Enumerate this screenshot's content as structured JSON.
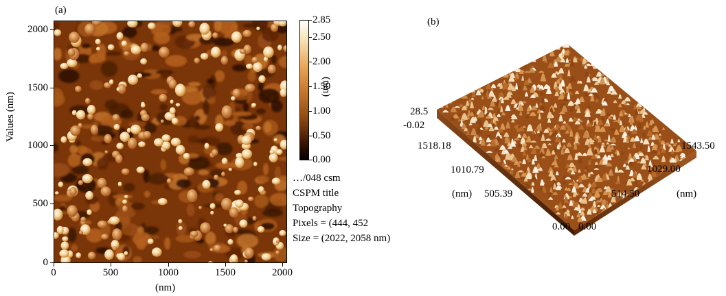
{
  "panel_a": {
    "label": "(a)",
    "y_axis_title": "Values (nm)",
    "x_axis_title": "(nm)",
    "y_ticks": [
      "2000",
      "1500",
      "1000",
      "500",
      "0"
    ],
    "x_ticks": [
      "0",
      "500",
      "1000",
      "1500",
      "2000"
    ],
    "colorbar": {
      "ticks": [
        "2.85",
        "2.50",
        "2.00",
        "1.50",
        "1.00",
        "0.50",
        "0.00"
      ],
      "unit": "(nm)"
    },
    "info": {
      "file": "…/048 csm",
      "title": "CSPM title",
      "mode": "Topography",
      "pixels": "Pixels = (444, 452",
      "size": "Size = (2022, 2058 nm)"
    },
    "colors": {
      "dark": "#3a1504",
      "mid": "#b5601c",
      "light": "#f6dfae"
    }
  },
  "panel_b": {
    "label": "(b)",
    "z_top": "28.5",
    "z_bottom": "-0.02",
    "left_axis": [
      "1518.18",
      "1010.79",
      "505.39",
      "0.00"
    ],
    "left_unit": "(nm)",
    "right_axis": [
      "1543.50",
      "1029.00",
      "514.50",
      "0.00"
    ],
    "right_unit": "(nm)"
  }
}
